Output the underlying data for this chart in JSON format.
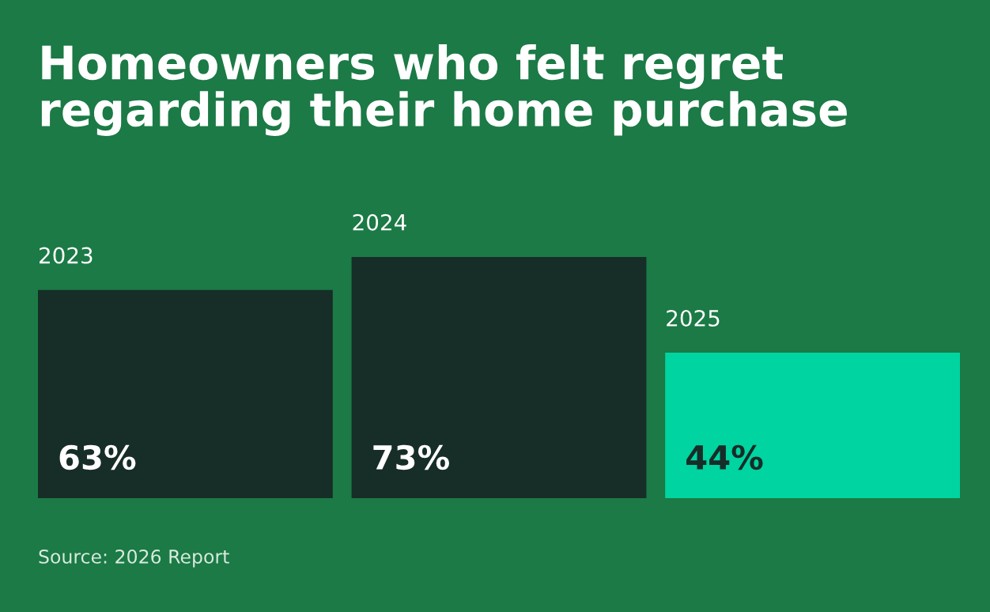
{
  "chart_data": {
    "type": "bar",
    "title": "Homeowners who felt regret\nregarding their home purchase",
    "categories": [
      "2023",
      "2024",
      "2025"
    ],
    "values": [
      63,
      73,
      44
    ],
    "value_labels": [
      "63%",
      "73%",
      "44%"
    ],
    "colors": [
      "#172d28",
      "#172d28",
      "#00d4a0"
    ],
    "annotations": [
      "Source: 2026 Report"
    ]
  }
}
